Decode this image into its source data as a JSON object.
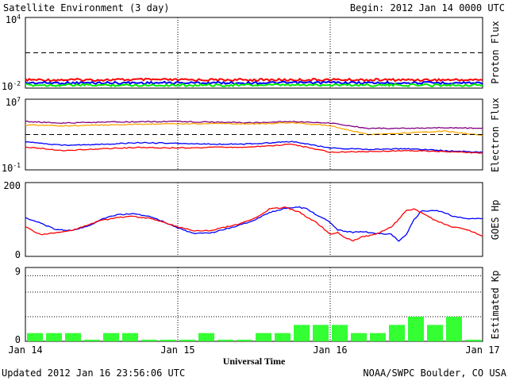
{
  "header": {
    "title": "Satellite Environment (3 day)",
    "begin": "Begin:  2012 Jan 14 0000 UTC"
  },
  "footer": {
    "updated": "Updated 2012 Jan 16 23:56:06 UTC",
    "source": "NOAA/SWPC Boulder, CO USA"
  },
  "x_axis": {
    "label": "Universal Time",
    "ticks": [
      "Jan 14",
      "Jan 15",
      "Jan 16",
      "Jan 17"
    ]
  },
  "chart_data": [
    {
      "type": "line",
      "ylabel": "Proton Flux",
      "yscale": "log",
      "ylim": [
        0.01,
        10000
      ],
      "ytick_labels": [
        {
          "base": "10",
          "exp": "4"
        },
        {
          "base": "10",
          "exp": "-2"
        }
      ],
      "threshold": 10,
      "x": [
        0,
        0.25,
        0.5,
        0.75,
        1,
        1.25,
        1.5,
        1.75,
        2,
        2.25,
        2.5,
        2.75,
        3
      ],
      "series": [
        {
          "color": "#ff0000",
          "values": [
            0.05,
            0.05,
            0.05,
            0.052,
            0.05,
            0.05,
            0.05,
            0.05,
            0.052,
            0.05,
            0.05,
            0.05,
            0.05
          ]
        },
        {
          "color": "#0000ff",
          "values": [
            0.028,
            0.028,
            0.028,
            0.028,
            0.028,
            0.028,
            0.028,
            0.028,
            0.03,
            0.028,
            0.028,
            0.028,
            0.028
          ]
        },
        {
          "color": "#00ee00",
          "values": [
            0.018,
            0.018,
            0.018,
            0.018,
            0.018,
            0.018,
            0.018,
            0.018,
            0.019,
            0.018,
            0.018,
            0.018,
            0.018
          ]
        }
      ]
    },
    {
      "type": "line",
      "ylabel": "Electron Flux",
      "yscale": "log",
      "ylim": [
        0.1,
        10000000
      ],
      "ytick_labels": [
        {
          "base": "10",
          "exp": "7"
        },
        {
          "base": "10",
          "exp": "-1"
        }
      ],
      "threshold": 1000,
      "x": [
        0,
        0.25,
        0.5,
        0.75,
        1,
        1.25,
        1.5,
        1.75,
        2,
        2.25,
        2.5,
        2.75,
        3
      ],
      "series": [
        {
          "color": "#800080",
          "values": [
            30000,
            20000,
            25000,
            28000,
            30000,
            25000,
            22000,
            30000,
            20000,
            5000,
            5000,
            6000,
            5000
          ]
        },
        {
          "color": "#ffa500",
          "values": [
            12000,
            10000,
            12000,
            15000,
            16000,
            18000,
            16000,
            22000,
            10000,
            1000,
            1500,
            2500,
            800
          ]
        },
        {
          "color": "#0000ff",
          "values": [
            150,
            60,
            80,
            120,
            100,
            80,
            90,
            160,
            30,
            20,
            25,
            15,
            10
          ]
        },
        {
          "color": "#ff0000",
          "values": [
            40,
            15,
            25,
            35,
            30,
            35,
            40,
            80,
            10,
            12,
            15,
            12,
            8
          ]
        }
      ]
    },
    {
      "type": "line",
      "ylabel": "GOES Hp",
      "ylim": [
        0,
        200
      ],
      "ytick_labels": [
        "200",
        "0"
      ],
      "x": [
        0,
        0.1,
        0.2,
        0.3,
        0.4,
        0.5,
        0.6,
        0.7,
        0.8,
        0.9,
        1,
        1.1,
        1.2,
        1.3,
        1.4,
        1.5,
        1.6,
        1.7,
        1.8,
        1.85,
        1.9,
        1.95,
        2,
        2.05,
        2.1,
        2.15,
        2.2,
        2.3,
        2.4,
        2.45,
        2.5,
        2.55,
        2.6,
        2.7,
        2.8,
        2.9,
        3
      ],
      "series": [
        {
          "color": "#0000ff",
          "values": [
            105,
            90,
            72,
            70,
            80,
            100,
            113,
            115,
            110,
            95,
            77,
            63,
            62,
            72,
            84,
            98,
            118,
            130,
            133,
            128,
            115,
            105,
            92,
            72,
            68,
            65,
            68,
            62,
            60,
            42,
            60,
            100,
            123,
            125,
            110,
            102,
            102
          ]
        },
        {
          "color": "#ff0000",
          "values": [
            80,
            58,
            65,
            70,
            84,
            98,
            105,
            108,
            104,
            94,
            80,
            70,
            70,
            78,
            88,
            102,
            128,
            133,
            120,
            105,
            95,
            78,
            60,
            65,
            50,
            42,
            52,
            60,
            80,
            100,
            125,
            128,
            118,
            95,
            80,
            72,
            55
          ]
        }
      ]
    },
    {
      "type": "bar",
      "ylabel": "Estimated Kp",
      "ylim": [
        0,
        9
      ],
      "ytick_labels": [
        "9",
        "0"
      ],
      "x_start": [
        0,
        0.125,
        0.25,
        0.375,
        0.5,
        0.625,
        0.75,
        0.875,
        1,
        1.125,
        1.25,
        1.375,
        1.5,
        1.625,
        1.75,
        1.875,
        2,
        2.125,
        2.25,
        2.375,
        2.5,
        2.625,
        2.75,
        2.875
      ],
      "values": [
        1,
        1,
        1,
        0,
        1,
        1,
        0,
        0,
        0,
        1,
        0,
        0,
        1,
        1,
        2,
        2,
        2,
        1,
        1,
        2,
        3,
        2,
        3,
        0
      ],
      "color": "#33ff33"
    }
  ],
  "colors": {
    "background": "#ffffff",
    "axis": "#000000",
    "kp_bar": "#33ff33"
  }
}
